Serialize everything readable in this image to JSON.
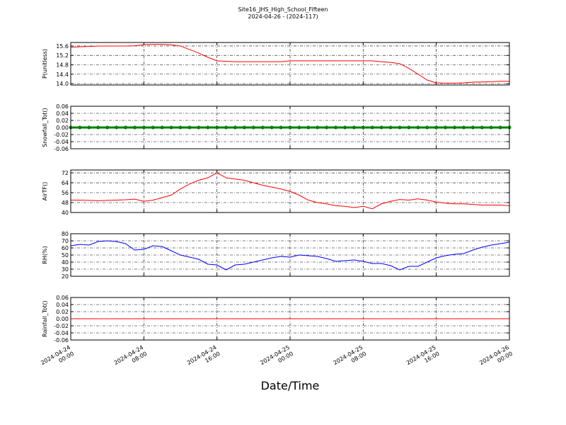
{
  "title": "Site16_JHS_High_School_Fifteen",
  "subtitle": "2024-04-26 - (2024-117)",
  "xlabel": "Date/Time",
  "xlim": [
    "2024-04-24 00:00",
    "2024-04-26 00:00"
  ],
  "xticks": [
    "2024-04-24 00:00",
    "2024-04-24 08:00",
    "2024-04-24 16:00",
    "2024-04-25 00:00",
    "2024-04-25 08:00",
    "2024-04-25 16:00",
    "2024-04-26 00:00"
  ],
  "x": [
    "2024-04-24 00:00",
    "2024-04-24 01:00",
    "2024-04-24 02:00",
    "2024-04-24 03:00",
    "2024-04-24 04:00",
    "2024-04-24 05:00",
    "2024-04-24 06:00",
    "2024-04-24 07:00",
    "2024-04-24 08:00",
    "2024-04-24 09:00",
    "2024-04-24 10:00",
    "2024-04-24 11:00",
    "2024-04-24 12:00",
    "2024-04-24 13:00",
    "2024-04-24 14:00",
    "2024-04-24 15:00",
    "2024-04-24 16:00",
    "2024-04-24 17:00",
    "2024-04-24 18:00",
    "2024-04-24 19:00",
    "2024-04-24 20:00",
    "2024-04-24 21:00",
    "2024-04-24 22:00",
    "2024-04-24 23:00",
    "2024-04-25 00:00",
    "2024-04-25 01:00",
    "2024-04-25 02:00",
    "2024-04-25 03:00",
    "2024-04-25 04:00",
    "2024-04-25 05:00",
    "2024-04-25 06:00",
    "2024-04-25 07:00",
    "2024-04-25 08:00",
    "2024-04-25 09:00",
    "2024-04-25 10:00",
    "2024-04-25 11:00",
    "2024-04-25 12:00",
    "2024-04-25 13:00",
    "2024-04-25 14:00",
    "2024-04-25 15:00",
    "2024-04-25 16:00",
    "2024-04-25 17:00",
    "2024-04-25 18:00",
    "2024-04-25 19:00",
    "2024-04-25 20:00",
    "2024-04-25 21:00",
    "2024-04-25 22:00",
    "2024-04-25 23:00",
    "2024-04-26 00:00"
  ],
  "chart_data": [
    {
      "type": "line",
      "ylabel": "P(unitless)",
      "ylim": [
        13.94,
        15.75
      ],
      "grid": true,
      "yticks": [
        {
          "value": 14.0,
          "label": "14.0"
        },
        14.4,
        14.8,
        15.2,
        15.6
      ],
      "series": [
        {
          "color": "#ff0000",
          "values": [
            15.55,
            15.57,
            15.58,
            15.6,
            15.6,
            15.6,
            15.6,
            15.61,
            15.66,
            15.67,
            15.67,
            15.65,
            15.6,
            15.45,
            15.3,
            15.12,
            14.97,
            14.95,
            14.93,
            14.93,
            14.93,
            14.93,
            14.93,
            14.93,
            14.97,
            14.97,
            14.97,
            14.97,
            14.97,
            14.97,
            14.97,
            14.97,
            14.97,
            14.97,
            14.93,
            14.9,
            14.85,
            14.65,
            14.4,
            14.15,
            14.03,
            14.02,
            14.02,
            14.03,
            14.06,
            14.07,
            14.08,
            14.1,
            14.1
          ]
        }
      ]
    },
    {
      "type": "line",
      "ylabel": "Snowfall_Tot()",
      "ylim": [
        -0.06,
        0.06
      ],
      "grid": true,
      "marker": true,
      "yticks": [
        -0.06,
        -0.04,
        -0.02,
        {
          "value": 0,
          "label": "0.00"
        },
        0.02,
        0.04,
        0.06
      ],
      "series": [
        {
          "color": "#008000",
          "values": [
            0,
            0,
            0,
            0,
            0,
            0,
            0,
            0,
            0,
            0,
            0,
            0,
            0,
            0,
            0,
            0,
            0,
            0,
            0,
            0,
            0,
            0,
            0,
            0,
            0,
            0,
            0,
            0,
            0,
            0,
            0,
            0,
            0,
            0,
            0,
            0,
            0,
            0,
            0,
            0,
            0,
            0,
            0,
            0,
            0,
            0,
            0,
            0,
            0
          ]
        }
      ]
    },
    {
      "type": "line",
      "ylabel": "AirTF()",
      "ylim": [
        40,
        74.3
      ],
      "grid": true,
      "yticks": [
        40,
        48,
        56,
        64,
        72
      ],
      "series": [
        {
          "color": "#ff0000",
          "values": [
            50,
            50,
            49.8,
            49.5,
            49.8,
            50,
            50.3,
            50.8,
            49,
            50,
            52,
            54,
            59,
            63,
            66,
            68,
            72,
            68,
            67,
            66,
            64,
            62,
            60.5,
            59,
            57,
            54,
            50,
            48,
            47,
            45.5,
            45,
            44,
            45,
            43,
            47,
            49,
            50.5,
            50,
            51,
            50,
            48.5,
            47.5,
            47,
            47,
            46.5,
            46,
            46,
            46,
            45.5
          ]
        }
      ]
    },
    {
      "type": "line",
      "ylabel": "RH(%)",
      "ylim": [
        20,
        80
      ],
      "grid": true,
      "yticks": [
        20,
        30,
        40,
        50,
        60,
        70,
        80
      ],
      "series": [
        {
          "color": "#0000ff",
          "values": [
            63,
            65,
            64,
            69,
            70,
            69,
            66,
            57,
            58,
            63,
            62,
            56,
            50,
            47,
            44,
            37,
            36,
            29,
            36,
            37,
            40,
            43,
            46,
            48,
            47,
            50,
            49,
            48,
            45,
            41,
            42,
            43,
            41,
            38,
            38,
            35,
            29,
            34,
            34,
            40,
            46,
            49,
            51,
            52,
            57,
            61,
            64,
            66,
            68
          ]
        }
      ]
    },
    {
      "type": "line",
      "ylabel": "Rainfall_Tot()",
      "ylim": [
        -0.06,
        0.06
      ],
      "grid": true,
      "yticks": [
        -0.06,
        -0.04,
        -0.02,
        {
          "value": 0,
          "label": "0.00"
        },
        0.02,
        0.04,
        0.06
      ],
      "series": [
        {
          "color": "#ff0000",
          "values": [
            0,
            0,
            0,
            0,
            0,
            0,
            0,
            0,
            0,
            0,
            0,
            0,
            0,
            0,
            0,
            0,
            0,
            0,
            0,
            0,
            0,
            0,
            0,
            0,
            0,
            0,
            0,
            0,
            0,
            0,
            0,
            0,
            0,
            0,
            0,
            0,
            0,
            0,
            0,
            0,
            0,
            0,
            0,
            0,
            0,
            0,
            0,
            0,
            0
          ]
        }
      ]
    }
  ]
}
